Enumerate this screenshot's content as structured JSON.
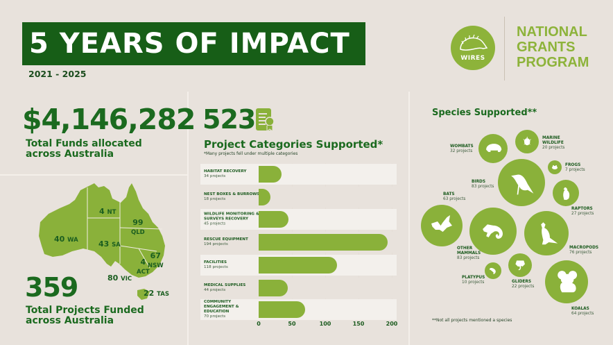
{
  "header": {
    "title": "5 YEARS OF IMPACT",
    "years": "2021 - 2025",
    "logo_text": "WIRES",
    "program_line1": "NATIONAL",
    "program_line2": "GRANTS",
    "program_line3": "PROGRAM"
  },
  "funds": {
    "amount": "$4,146,282",
    "label_line1": "Total Funds allocated",
    "label_line2": "across Australia"
  },
  "map": {
    "states": [
      {
        "num": "40",
        "code": "WA"
      },
      {
        "num": "4",
        "code": "NT"
      },
      {
        "num": "99",
        "code": "QLD"
      },
      {
        "num": "43",
        "code": "SA"
      },
      {
        "num": "67",
        "code": "NSW"
      },
      {
        "num": "4",
        "code": "ACT"
      },
      {
        "num": "80",
        "code": "VIC"
      },
      {
        "num": "22",
        "code": "TAS"
      }
    ]
  },
  "projects": {
    "total": "359",
    "label_line1": "Total Projects Funded",
    "label_line2": "across Australia"
  },
  "categories": {
    "total": "523",
    "title": "Project Categories Supported*",
    "footnote": "*Many projects fell under multiple categories",
    "ticks": [
      "0",
      "50",
      "100",
      "150",
      "200"
    ]
  },
  "species": {
    "title": "Species Supported**",
    "footnote": "**Not all projects mentioned a species",
    "items": [
      {
        "name": "WOMBATS",
        "count": "32 projects"
      },
      {
        "name": "MARINE",
        "name2": "WILDLIFE",
        "count": "20 projects"
      },
      {
        "name": "FROGS",
        "count": "7 projects"
      },
      {
        "name": "BIRDS",
        "count": "83 projects"
      },
      {
        "name": "RAPTORS",
        "count": "27 projects"
      },
      {
        "name": "BATS",
        "count": "63 projects"
      },
      {
        "name": "OTHER",
        "name2": "MAMMALS",
        "count": "83 projects"
      },
      {
        "name": "MACROPODS",
        "count": "76 projects"
      },
      {
        "name": "PLATYPUS",
        "count": "10 projects"
      },
      {
        "name": "GLIDERS",
        "count": "22 projects"
      },
      {
        "name": "KOALAS",
        "count": "64 projects"
      }
    ]
  },
  "colors": {
    "dark_green": "#175e17",
    "accent_green": "#8db33a",
    "background": "#e8e2dc"
  },
  "chart_data": [
    {
      "type": "bar",
      "orientation": "horizontal",
      "title": "Project Categories Supported*",
      "subtitle": "*Many projects fell under multiple categories",
      "categories": [
        "HABITAT RECOVERY",
        "NEST BOXES & BURROWS",
        "WILDLIFE MONITORING & SURVEYS RECOVERY",
        "RESCUE EQUIPMENT",
        "FACILITIES",
        "MEDICAL SUPPLIES",
        "COMMUNITY ENGAGEMENT & EDUCATION"
      ],
      "values": [
        34,
        18,
        45,
        194,
        118,
        44,
        70
      ],
      "xlabel": "",
      "ylabel": "",
      "xlim": [
        0,
        200
      ],
      "xticks": [
        0,
        50,
        100,
        150,
        200
      ],
      "grid": true
    },
    {
      "type": "bubble",
      "title": "Species Supported**",
      "categories": [
        "Wombats",
        "Marine Wildlife",
        "Frogs",
        "Birds",
        "Raptors",
        "Bats",
        "Other Mammals",
        "Macropods",
        "Platypus",
        "Gliders",
        "Koalas"
      ],
      "values": [
        32,
        20,
        7,
        83,
        27,
        63,
        83,
        76,
        10,
        22,
        64
      ]
    },
    {
      "type": "map",
      "title": "Total Projects Funded across Australia",
      "categories": [
        "WA",
        "NT",
        "QLD",
        "SA",
        "NSW",
        "ACT",
        "VIC",
        "TAS"
      ],
      "values": [
        40,
        4,
        99,
        43,
        67,
        4,
        80,
        22
      ]
    }
  ]
}
